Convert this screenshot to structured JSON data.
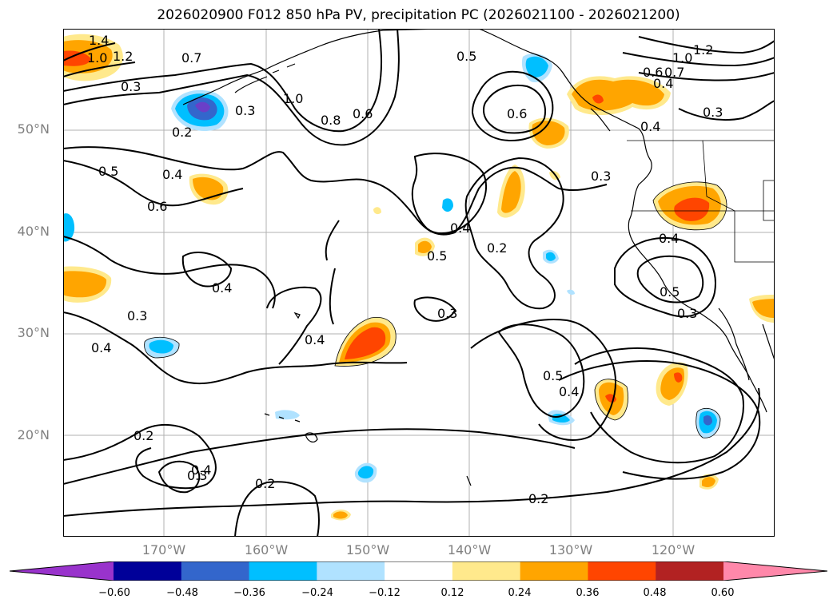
{
  "title": "2026020900 F012 850 hPa PV, precipitation PC (2026021100 - 2026021200)",
  "lat_labels": [
    "50°N",
    "40°N",
    "30°N",
    "20°N"
  ],
  "lon_labels": [
    "170°W",
    "160°W",
    "150°W",
    "140°W",
    "130°W",
    "120°W"
  ],
  "colorbar": {
    "tick_labels": [
      "−0.60",
      "−0.48",
      "−0.36",
      "−0.24",
      "−0.12",
      "0.12",
      "0.24",
      "0.36",
      "0.48",
      "0.60"
    ],
    "colors": [
      "#9933cc",
      "#000099",
      "#3366cc",
      "#00bfff",
      "#b0e2ff",
      "#ffffff",
      "#ffe98c",
      "#ffa500",
      "#ff4500",
      "#b22222",
      "#ff88aa"
    ]
  },
  "contour_labels": [
    "1.4",
    "1.2",
    "1.0",
    "0.7",
    "0.3",
    "1.0",
    "0.3",
    "0.2",
    "0.8",
    "0.6",
    "0.5",
    "0.6",
    "0.5",
    "0.4",
    "0.6",
    "0.4",
    "0.3",
    "0.4",
    "0.5",
    "0.2",
    "0.4",
    "0.3",
    "0.4",
    "0.3",
    "0.2",
    "0.4",
    "0.3",
    "0.5",
    "0.4",
    "0.2",
    "0.2",
    "1.0",
    "1.2",
    "0.6",
    "0.7",
    "0.4",
    "0.3",
    "0.4",
    "0.4",
    "0.5",
    "0.3"
  ]
}
